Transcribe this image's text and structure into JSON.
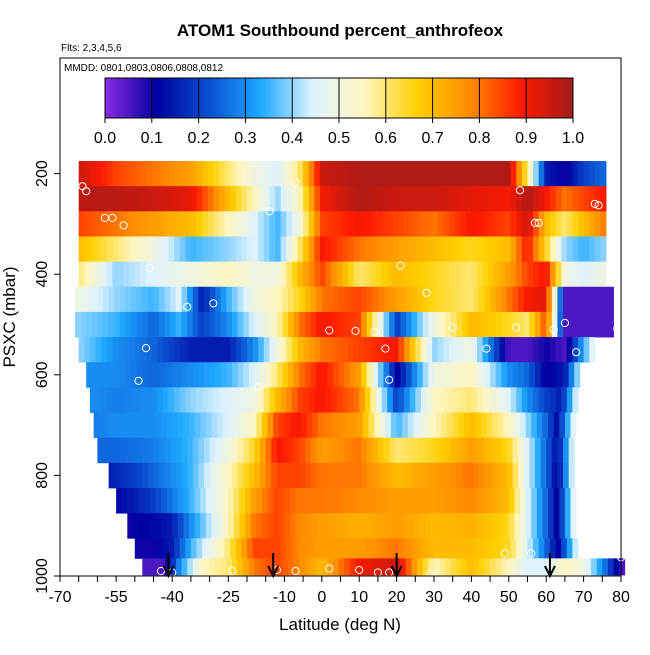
{
  "chart_data": {
    "type": "heatmap",
    "title": "ATOM1 Southbound percent_anthrofeox",
    "flights_label": "Flts: 2,3,4,5,6",
    "dates_label": "MMDD: 0801,0803,0806,0808,0812",
    "xlabel": "Latitude (deg N)",
    "ylabel": "PSXC (mbar)",
    "xlim": [
      -70,
      80
    ],
    "ylim": [
      1000,
      0
    ],
    "x_tick_labels": [
      "-70",
      "-55",
      "-40",
      "-25",
      "-10",
      "0",
      "10",
      "20",
      "30",
      "40",
      "50",
      "60",
      "70",
      "80"
    ],
    "x_tick_values": [
      -70,
      -55,
      -40,
      -25,
      -10,
      0,
      10,
      20,
      30,
      40,
      50,
      60,
      70,
      80
    ],
    "y_ticks": [
      200,
      400,
      600,
      800,
      1000
    ],
    "colorbar": {
      "range": [
        0,
        1
      ],
      "tick_labels": [
        "0.0",
        "0.1",
        "0.2",
        "0.3",
        "0.4",
        "0.5",
        "0.6",
        "0.7",
        "0.8",
        "0.9",
        "1.0"
      ],
      "colors": [
        "#8a2be2",
        "#0000a0",
        "#0a4fd0",
        "#1ea8ff",
        "#dff3ff",
        "#fff6c0",
        "#ffd000",
        "#ff8c00",
        "#ff1a00",
        "#a01a1a"
      ]
    },
    "profile_markers_lat": [
      -41,
      -13,
      20,
      61
    ],
    "layers": [
      {
        "pressure": 200,
        "lat_min": -65,
        "lat_max": 75,
        "lat": [
          -65,
          -55,
          -45,
          -35,
          -25,
          -18,
          -12,
          -6,
          0,
          10,
          20,
          30,
          40,
          50,
          55,
          60,
          65,
          70,
          75
        ],
        "values": [
          0.95,
          0.85,
          0.8,
          0.75,
          0.6,
          0.5,
          0.45,
          0.6,
          0.95,
          0.98,
          0.98,
          0.98,
          0.98,
          0.98,
          0.6,
          0.15,
          0.1,
          0.2,
          0.25
        ]
      },
      {
        "pressure": 250,
        "lat_min": -65,
        "lat_max": 76,
        "lat": [
          -65,
          -55,
          -45,
          -35,
          -25,
          -18,
          -12,
          -6,
          0,
          10,
          20,
          30,
          40,
          50,
          55,
          60,
          65,
          70,
          76
        ],
        "values": [
          0.97,
          0.97,
          0.95,
          0.92,
          0.7,
          0.55,
          0.4,
          0.55,
          0.9,
          0.98,
          0.95,
          0.95,
          0.92,
          0.9,
          0.98,
          0.9,
          0.8,
          0.85,
          0.9
        ]
      },
      {
        "pressure": 300,
        "lat_min": -65,
        "lat_max": 76,
        "lat": [
          -65,
          -55,
          -45,
          -35,
          -25,
          -18,
          -12,
          -6,
          0,
          10,
          20,
          30,
          40,
          50,
          55,
          60,
          65,
          70,
          76
        ],
        "values": [
          0.85,
          0.8,
          0.75,
          0.7,
          0.55,
          0.45,
          0.35,
          0.5,
          0.85,
          0.9,
          0.85,
          0.8,
          0.9,
          0.85,
          0.95,
          0.7,
          0.6,
          0.7,
          0.8
        ]
      },
      {
        "pressure": 350,
        "lat_min": -65,
        "lat_max": 76,
        "lat": [
          -65,
          -55,
          -45,
          -35,
          -25,
          -18,
          -12,
          -6,
          0,
          10,
          20,
          30,
          40,
          50,
          55,
          60,
          65,
          70,
          76
        ],
        "values": [
          0.7,
          0.6,
          0.5,
          0.35,
          0.4,
          0.45,
          0.35,
          0.6,
          0.9,
          0.8,
          0.75,
          0.7,
          0.65,
          0.7,
          0.9,
          0.65,
          0.4,
          0.35,
          0.4
        ]
      },
      {
        "pressure": 400,
        "lat_min": -65,
        "lat_max": 76,
        "lat": [
          -65,
          -55,
          -45,
          -35,
          -25,
          -18,
          -12,
          -6,
          0,
          10,
          20,
          30,
          40,
          50,
          55,
          60,
          65,
          70,
          76
        ],
        "values": [
          0.6,
          0.4,
          0.45,
          0.5,
          0.55,
          0.5,
          0.5,
          0.7,
          0.85,
          0.6,
          0.7,
          0.65,
          0.6,
          0.75,
          0.85,
          0.9,
          0.5,
          0.45,
          0.5
        ]
      },
      {
        "pressure": 450,
        "lat_min": -66,
        "lat_max": 77,
        "lat": [
          -66,
          -55,
          -45,
          -38,
          -32,
          -25,
          -18,
          -12,
          -6,
          0,
          10,
          20,
          30,
          40,
          50,
          55,
          60,
          65,
          70,
          77
        ],
        "values": [
          0.5,
          0.4,
          0.35,
          0.45,
          0.15,
          0.35,
          0.5,
          0.55,
          0.65,
          0.8,
          0.85,
          0.75,
          0.65,
          0.6,
          0.8,
          0.9,
          0.92,
          0.05,
          0.05,
          0.05
        ]
      },
      {
        "pressure": 500,
        "lat_min": -66,
        "lat_max": 77,
        "lat": [
          -66,
          -55,
          -45,
          -38,
          -32,
          -25,
          -18,
          -12,
          -6,
          0,
          10,
          20,
          30,
          40,
          50,
          55,
          60,
          65,
          70,
          77
        ],
        "values": [
          0.4,
          0.35,
          0.25,
          0.35,
          0.2,
          0.3,
          0.45,
          0.55,
          0.8,
          0.9,
          0.85,
          0.2,
          0.5,
          0.7,
          0.65,
          0.6,
          0.85,
          0.05,
          0.05,
          0.05
        ]
      },
      {
        "pressure": 550,
        "lat_min": -65,
        "lat_max": 72,
        "lat": [
          -65,
          -55,
          -45,
          -35,
          -25,
          -18,
          -12,
          -6,
          0,
          10,
          20,
          30,
          40,
          50,
          55,
          60,
          65,
          72
        ],
        "values": [
          0.4,
          0.3,
          0.25,
          0.15,
          0.15,
          0.3,
          0.5,
          0.7,
          0.8,
          0.85,
          0.9,
          0.4,
          0.5,
          0.05,
          0.05,
          0.1,
          0.05,
          0.45
        ]
      },
      {
        "pressure": 600,
        "lat_min": -63,
        "lat_max": 69,
        "lat": [
          -63,
          -55,
          -45,
          -35,
          -25,
          -18,
          -12,
          -6,
          0,
          10,
          20,
          30,
          40,
          50,
          55,
          60,
          65,
          69
        ],
        "values": [
          0.3,
          0.3,
          0.25,
          0.3,
          0.35,
          0.45,
          0.6,
          0.8,
          0.9,
          0.75,
          0.1,
          0.5,
          0.55,
          0.3,
          0.25,
          0.1,
          0.15,
          0.45
        ]
      },
      {
        "pressure": 650,
        "lat_min": -62,
        "lat_max": 68,
        "lat": [
          -62,
          -55,
          -45,
          -35,
          -25,
          -18,
          -12,
          -6,
          0,
          10,
          20,
          30,
          40,
          50,
          55,
          60,
          64,
          68
        ],
        "values": [
          0.3,
          0.28,
          0.3,
          0.4,
          0.45,
          0.5,
          0.7,
          0.85,
          0.9,
          0.8,
          0.2,
          0.55,
          0.6,
          0.45,
          0.3,
          0.2,
          0.15,
          0.45
        ]
      },
      {
        "pressure": 700,
        "lat_min": -61,
        "lat_max": 67,
        "lat": [
          -61,
          -55,
          -45,
          -35,
          -25,
          -18,
          -12,
          -6,
          0,
          10,
          20,
          30,
          40,
          50,
          55,
          60,
          63,
          67
        ],
        "values": [
          0.28,
          0.3,
          0.3,
          0.35,
          0.45,
          0.55,
          0.85,
          0.9,
          0.8,
          0.75,
          0.35,
          0.55,
          0.7,
          0.55,
          0.4,
          0.25,
          0.12,
          0.45
        ]
      },
      {
        "pressure": 750,
        "lat_min": -60,
        "lat_max": 67,
        "lat": [
          -60,
          -55,
          -45,
          -35,
          -25,
          -18,
          -12,
          -6,
          0,
          10,
          20,
          30,
          40,
          50,
          55,
          60,
          63,
          67
        ],
        "values": [
          0.25,
          0.25,
          0.28,
          0.35,
          0.5,
          0.65,
          0.9,
          0.85,
          0.75,
          0.8,
          0.6,
          0.65,
          0.75,
          0.65,
          0.45,
          0.25,
          0.12,
          0.45
        ]
      },
      {
        "pressure": 800,
        "lat_min": -57,
        "lat_max": 67,
        "lat": [
          -57,
          -50,
          -45,
          -35,
          -25,
          -18,
          -12,
          -6,
          0,
          10,
          20,
          30,
          40,
          50,
          55,
          60,
          63,
          67
        ],
        "values": [
          0.15,
          0.2,
          0.25,
          0.35,
          0.55,
          0.7,
          0.85,
          0.85,
          0.8,
          0.8,
          0.7,
          0.75,
          0.8,
          0.7,
          0.45,
          0.25,
          0.1,
          0.45
        ]
      },
      {
        "pressure": 850,
        "lat_min": -55,
        "lat_max": 67,
        "lat": [
          -55,
          -50,
          -45,
          -35,
          -25,
          -18,
          -12,
          -6,
          0,
          10,
          20,
          30,
          40,
          50,
          55,
          60,
          63,
          67
        ],
        "values": [
          0.12,
          0.15,
          0.2,
          0.35,
          0.55,
          0.75,
          0.85,
          0.8,
          0.8,
          0.78,
          0.75,
          0.75,
          0.78,
          0.7,
          0.45,
          0.25,
          0.1,
          0.45
        ]
      },
      {
        "pressure": 900,
        "lat_min": -52,
        "lat_max": 67,
        "lat": [
          -52,
          -45,
          -40,
          -35,
          -25,
          -18,
          -12,
          -6,
          0,
          10,
          20,
          30,
          40,
          50,
          55,
          60,
          63,
          67
        ],
        "values": [
          0.1,
          0.12,
          0.15,
          0.3,
          0.55,
          0.8,
          0.85,
          0.78,
          0.75,
          0.72,
          0.75,
          0.7,
          0.72,
          0.65,
          0.45,
          0.25,
          0.1,
          0.45
        ]
      },
      {
        "pressure": 950,
        "lat_min": -50,
        "lat_max": 68,
        "lat": [
          -50,
          -45,
          -40,
          -35,
          -25,
          -18,
          -12,
          -6,
          0,
          10,
          20,
          30,
          40,
          50,
          55,
          60,
          63,
          68
        ],
        "values": [
          0.1,
          0.1,
          0.15,
          0.35,
          0.6,
          0.85,
          0.85,
          0.78,
          0.75,
          0.75,
          0.8,
          0.7,
          0.7,
          0.65,
          0.45,
          0.25,
          0.1,
          0.45
        ]
      },
      {
        "pressure": 990,
        "lat_min": -48,
        "lat_max": 80,
        "lat": [
          -48,
          -42,
          -38,
          -32,
          -25,
          -18,
          -12,
          -6,
          0,
          10,
          20,
          30,
          40,
          50,
          55,
          60,
          65,
          70,
          75,
          80
        ],
        "values": [
          0.05,
          0.05,
          0.3,
          0.55,
          0.6,
          0.8,
          0.85,
          0.78,
          0.7,
          0.9,
          0.95,
          0.55,
          0.7,
          0.55,
          0.45,
          0.45,
          0.55,
          0.5,
          0.3,
          0.05
        ]
      }
    ],
    "open_circles": [
      [
        -64,
        225
      ],
      [
        -63,
        235
      ],
      [
        -58,
        288
      ],
      [
        -56,
        288
      ],
      [
        -53,
        303
      ],
      [
        -46,
        388
      ],
      [
        -36,
        465
      ],
      [
        -29,
        458
      ],
      [
        -14,
        275
      ],
      [
        -7,
        218
      ],
      [
        2,
        512
      ],
      [
        9,
        513
      ],
      [
        14,
        515
      ],
      [
        17,
        548
      ],
      [
        21,
        383
      ],
      [
        28,
        437
      ],
      [
        35,
        506
      ],
      [
        44,
        548
      ],
      [
        52,
        506
      ],
      [
        53,
        233
      ],
      [
        57,
        298
      ],
      [
        58,
        298
      ],
      [
        62,
        510
      ],
      [
        65,
        497
      ],
      [
        68,
        555
      ],
      [
        73,
        260
      ],
      [
        74,
        263
      ],
      [
        79,
        508
      ],
      [
        -47,
        547
      ],
      [
        -49,
        612
      ],
      [
        -17,
        625
      ],
      [
        18,
        610
      ],
      [
        -43,
        990
      ],
      [
        -40,
        993
      ],
      [
        -24,
        990
      ],
      [
        -12,
        988
      ],
      [
        -7,
        990
      ],
      [
        2,
        985
      ],
      [
        10,
        988
      ],
      [
        15,
        993
      ],
      [
        18,
        993
      ],
      [
        29,
        995
      ],
      [
        49,
        955
      ],
      [
        56,
        955
      ],
      [
        80,
        963
      ]
    ]
  }
}
